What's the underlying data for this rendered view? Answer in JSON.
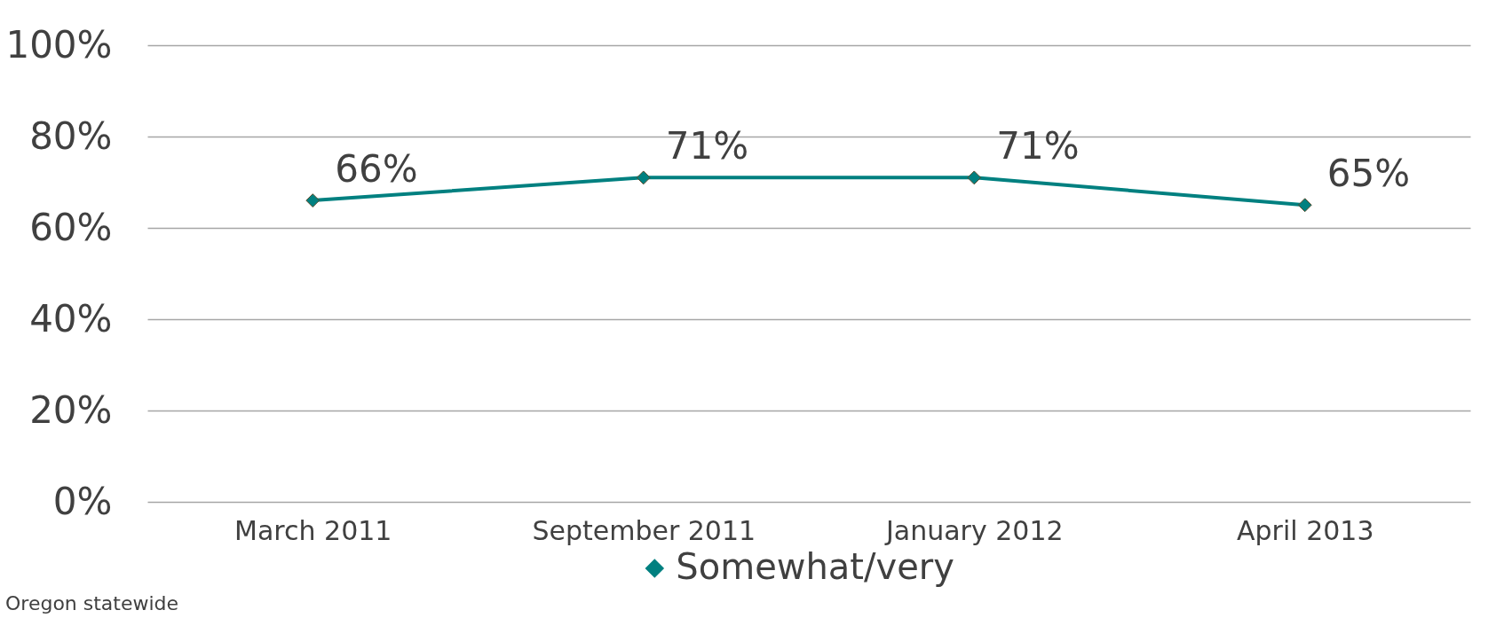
{
  "chart_data": {
    "type": "line",
    "categories": [
      "March 2011",
      "September 2011",
      "January 2012",
      "April 2013"
    ],
    "series": [
      {
        "name": "Somewhat/very",
        "color": "#008080",
        "values": [
          66,
          71,
          71,
          65
        ],
        "value_labels": [
          "66%",
          "71%",
          "71%",
          "65%"
        ]
      }
    ],
    "ylim": [
      0,
      100
    ],
    "yticks": [
      {
        "value": 0,
        "label": "0%"
      },
      {
        "value": 20,
        "label": "20%"
      },
      {
        "value": 40,
        "label": "40%"
      },
      {
        "value": 60,
        "label": "60%"
      },
      {
        "value": 80,
        "label": "80%"
      },
      {
        "value": 100,
        "label": "100%"
      }
    ],
    "grid": "y",
    "legend": "bottom",
    "marker": "diamond",
    "line_style": "solid",
    "annotations": [
      "Oregon statewide"
    ]
  }
}
